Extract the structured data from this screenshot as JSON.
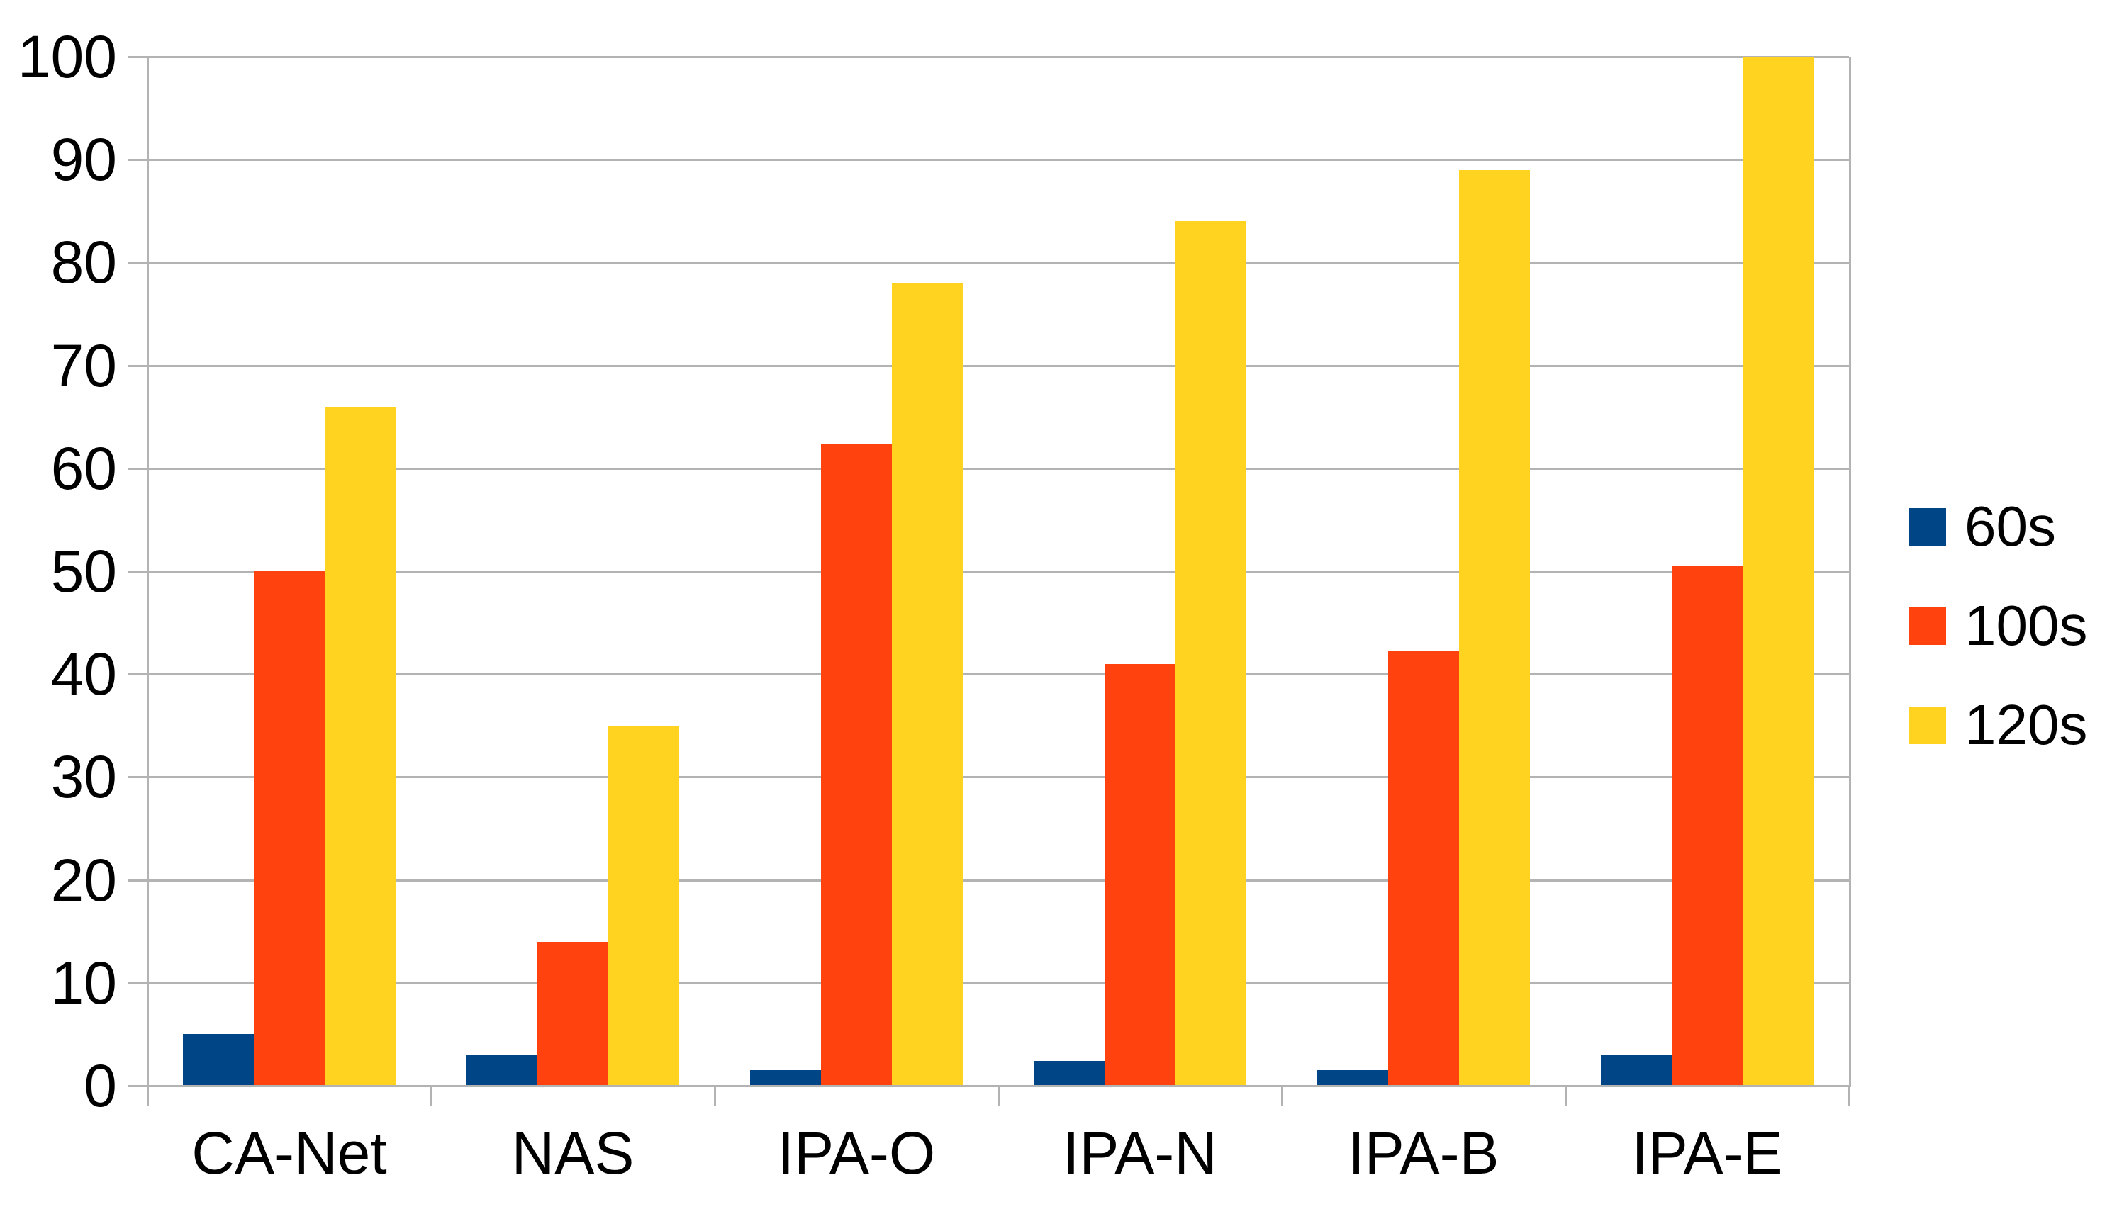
{
  "chart_data": {
    "type": "bar",
    "title": "",
    "xlabel": "",
    "ylabel": "",
    "categories": [
      "CA-Net",
      "NAS",
      "IPA-O",
      "IPA-N",
      "IPA-B",
      "IPA-E"
    ],
    "series": [
      {
        "name": "60s",
        "color": "#004586",
        "values": [
          5,
          3,
          1.5,
          2.4,
          1.5,
          3
        ]
      },
      {
        "name": "100s",
        "color": "#FF420E",
        "values": [
          50,
          14,
          62.3,
          41,
          42.3,
          50.5
        ]
      },
      {
        "name": "120s",
        "color": "#FFD320",
        "values": [
          66,
          35,
          78,
          84,
          89,
          100
        ]
      }
    ],
    "ylim": [
      0,
      100
    ],
    "ytick_step": 10,
    "yticks": [
      0,
      10,
      20,
      30,
      40,
      50,
      60,
      70,
      80,
      90,
      100
    ],
    "grid": true,
    "legend_position": "right",
    "colors": {
      "gridline": "#B3B3B3",
      "axis": "#B3B3B3",
      "text": "#000000",
      "background": "#FFFFFF"
    }
  }
}
